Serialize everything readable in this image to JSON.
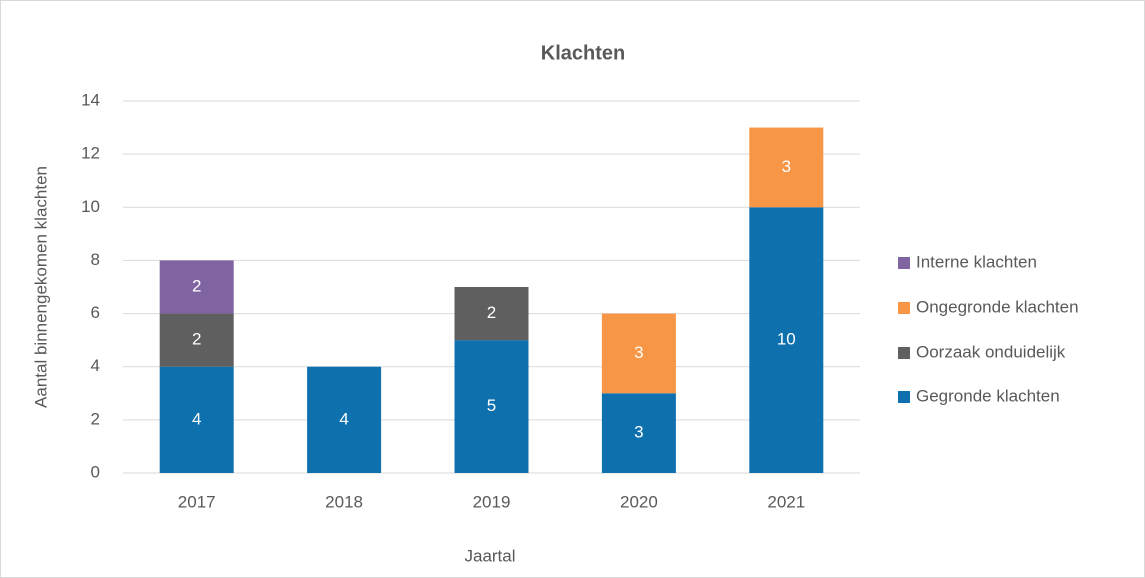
{
  "chart_data": {
    "type": "stacked_bar",
    "title": "Klachten",
    "x_label": "Jaartal",
    "y_label": "Aantal binnengekomen klachten",
    "categories": [
      "2017",
      "2018",
      "2019",
      "2020",
      "2021"
    ],
    "series": [
      {
        "name": "Gegronde klachten",
        "color": "#0f70ae",
        "values": [
          4,
          4,
          5,
          3,
          10
        ]
      },
      {
        "name": "Oorzaak onduidelijk",
        "color": "#5f5f5f",
        "values": [
          2,
          null,
          2,
          null,
          null
        ]
      },
      {
        "name": "Ongegronde klachten",
        "color": "#f79646",
        "values": [
          null,
          null,
          null,
          3,
          3
        ]
      },
      {
        "name": "Interne klachten",
        "color": "#8064a2",
        "values": [
          2,
          null,
          null,
          null,
          null
        ]
      }
    ],
    "ylim": [
      0,
      14
    ],
    "yticks": [
      0,
      2,
      4,
      6,
      8,
      10,
      12,
      14
    ],
    "grid": true,
    "legend": "right"
  }
}
